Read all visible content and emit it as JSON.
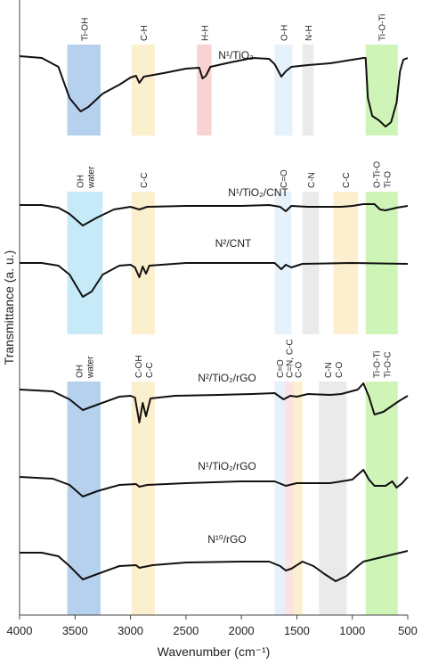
{
  "chart_data": {
    "type": "line",
    "xlabel": "Wavenumber (cm⁻¹)",
    "ylabel": "Transmittance (a. u.)",
    "xlim": [
      4000,
      500
    ],
    "xticks": [
      4000,
      3500,
      3000,
      2500,
      2000,
      1500,
      1000,
      500
    ],
    "ylim": [
      0,
      69
    ],
    "series": [
      {
        "name": "N¹/TiO₂",
        "color": "#111111",
        "x": [
          4000,
          3800,
          3650,
          3550,
          3450,
          3380,
          3250,
          3100,
          3000,
          2950,
          2920,
          2880,
          2700,
          2500,
          2380,
          2350,
          2320,
          2280,
          2100,
          1900,
          1750,
          1700,
          1640,
          1600,
          1550,
          1400,
          1200,
          1000,
          900,
          880,
          860,
          820,
          760,
          700,
          650,
          600,
          570,
          540,
          500
        ],
        "values": [
          62.7,
          62.5,
          61.5,
          58,
          56.5,
          57,
          58.5,
          59.5,
          60.3,
          60.5,
          59.7,
          60.4,
          60.8,
          61.3,
          61.4,
          60.2,
          60.5,
          61.5,
          62,
          62.5,
          62.4,
          61.8,
          60.4,
          61,
          61.5,
          61.7,
          61.9,
          62.3,
          62.5,
          62.5,
          58,
          56,
          55.5,
          54.8,
          55.3,
          57.5,
          61,
          62.3,
          62.5
        ]
      },
      {
        "name": "N¹/TiO₂/CNT",
        "color": "#111111",
        "x": [
          4000,
          3800,
          3650,
          3550,
          3430,
          3300,
          3150,
          3000,
          2920,
          2850,
          2500,
          2000,
          1750,
          1650,
          1600,
          1550,
          1400,
          1200,
          1100,
          1000,
          900,
          800,
          750,
          700,
          600,
          500
        ],
        "values": [
          46,
          46,
          45.7,
          45,
          43.7,
          44.6,
          45.5,
          45.8,
          45.5,
          45.8,
          45.9,
          45.9,
          46,
          45.8,
          45.3,
          45.9,
          45.8,
          45.8,
          45.8,
          45.9,
          46.1,
          46.1,
          45.5,
          45.4,
          45.7,
          45.9
        ]
      },
      {
        "name": "N²/CNT",
        "color": "#111111",
        "x": [
          4000,
          3800,
          3650,
          3550,
          3430,
          3350,
          3250,
          3100,
          3000,
          2960,
          2920,
          2890,
          2860,
          2830,
          2500,
          2000,
          1700,
          1640,
          1600,
          1550,
          1450,
          1000,
          500
        ],
        "values": [
          39.5,
          39.5,
          39.2,
          38.2,
          35.7,
          36.3,
          38.2,
          39.2,
          39.3,
          39,
          37.9,
          39.1,
          38.3,
          39.2,
          39.5,
          39.5,
          39.5,
          38.8,
          39.3,
          39,
          39.4,
          39.5,
          39.4
        ]
      },
      {
        "name": "N²/TiO₂/rGO",
        "color": "#111111",
        "x": [
          4000,
          3700,
          3550,
          3430,
          3300,
          3100,
          3000,
          2960,
          2920,
          2890,
          2860,
          2820,
          2600,
          2200,
          1900,
          1700,
          1620,
          1560,
          1500,
          1400,
          1200,
          1100,
          950,
          900,
          850,
          800,
          720,
          650,
          580,
          500
        ],
        "values": [
          25.3,
          25.1,
          24.2,
          23,
          23.6,
          24.5,
          24.6,
          24.4,
          21.6,
          23.8,
          22.3,
          24.3,
          24.6,
          24.7,
          24.8,
          24.9,
          24.2,
          24.6,
          24.5,
          24.8,
          24.7,
          24.8,
          25.3,
          26,
          24.5,
          22.5,
          22.8,
          23.4,
          24,
          24.6
        ]
      },
      {
        "name": "N¹/TiO₂/rGO",
        "color": "#111111",
        "x": [
          4000,
          3700,
          3550,
          3430,
          3300,
          3100,
          2950,
          2920,
          2850,
          2500,
          2000,
          1700,
          1600,
          1500,
          1200,
          1000,
          900,
          850,
          800,
          700,
          640,
          600,
          550,
          500
        ],
        "values": [
          15.5,
          15.3,
          14.6,
          13.3,
          13.9,
          14.6,
          14.7,
          14.4,
          14.6,
          14.8,
          15,
          15,
          14.5,
          14.8,
          14.8,
          15.2,
          16.3,
          15.2,
          14.5,
          14.5,
          15,
          14.3,
          14.8,
          15.5
        ]
      },
      {
        "name": "N¹⁰/rGO",
        "color": "#111111",
        "x": [
          4000,
          3800,
          3650,
          3550,
          3430,
          3300,
          3100,
          2950,
          2920,
          2800,
          2500,
          2000,
          1750,
          1650,
          1600,
          1550,
          1450,
          1350,
          1250,
          1150,
          1050,
          950,
          900,
          800,
          700,
          600,
          500
        ],
        "values": [
          7,
          7,
          6.6,
          5.5,
          4,
          4.6,
          5.5,
          5.6,
          5.3,
          5.6,
          5.9,
          6,
          6,
          5.5,
          5,
          5.2,
          6,
          5.5,
          4.6,
          3.8,
          4.4,
          5.5,
          6,
          6.3,
          6.6,
          6.9,
          7.2
        ]
      }
    ],
    "bands": [
      {
        "x": [
          3570,
          3270
        ],
        "y": [
          53.8,
          64
        ],
        "color": "#a9c9ea",
        "labels": [
          "Ti-OH"
        ]
      },
      {
        "x": [
          2990,
          2780
        ],
        "y": [
          53.8,
          64
        ],
        "color": "#fcecc4",
        "labels": [
          "C-H"
        ]
      },
      {
        "x": [
          2400,
          2270
        ],
        "y": [
          53.8,
          64
        ],
        "color": "#f8caca",
        "labels": [
          "H-H"
        ]
      },
      {
        "x": [
          1700,
          1540
        ],
        "y": [
          53.8,
          64
        ],
        "color": "#e0effa",
        "labels": [
          "O-H"
        ]
      },
      {
        "x": [
          1450,
          1350
        ],
        "y": [
          53.8,
          64
        ],
        "color": "#e6e6e6",
        "labels": [
          "N-H"
        ]
      },
      {
        "x": [
          880,
          590
        ],
        "y": [
          53.8,
          64
        ],
        "color": "#c6f2aa",
        "labels": [
          "Ti-O-Ti"
        ]
      },
      {
        "x": [
          3570,
          3250
        ],
        "y": [
          31.5,
          47.5
        ],
        "color": "#bce6f6",
        "labels": [
          "OH",
          "water"
        ]
      },
      {
        "x": [
          2990,
          2780
        ],
        "y": [
          31.5,
          47.5
        ],
        "color": "#fcecc4",
        "labels": [
          "C-C"
        ]
      },
      {
        "x": [
          1700,
          1550
        ],
        "y": [
          31.5,
          47.5
        ],
        "color": "#e0effa",
        "labels": [
          "C=O"
        ]
      },
      {
        "x": [
          1450,
          1300
        ],
        "y": [
          31.5,
          47.5
        ],
        "color": "#e6e6e6",
        "labels": [
          "C-N"
        ]
      },
      {
        "x": [
          1170,
          950
        ],
        "y": [
          31.5,
          47.5
        ],
        "color": "#fcecc4",
        "labels": [
          "C-C"
        ]
      },
      {
        "x": [
          880,
          590
        ],
        "y": [
          31.5,
          47.5
        ],
        "color": "#c6f2aa",
        "labels": [
          "O-Ti-O",
          "Ti-O"
        ]
      },
      {
        "x": [
          3570,
          3270
        ],
        "y": [
          0,
          26.2
        ],
        "color": "#a9c9ea",
        "labels": [
          "OH",
          "water"
        ]
      },
      {
        "x": [
          2990,
          2780
        ],
        "y": [
          0,
          26.2
        ],
        "color": "#fcecc4",
        "labels": [
          "C-OH",
          "C-C"
        ]
      },
      {
        "x": [
          1700,
          1610
        ],
        "y": [
          0,
          26.2
        ],
        "color": "#e0effa",
        "labels": [
          "C=O"
        ]
      },
      {
        "x": [
          1610,
          1530
        ],
        "y": [
          0,
          26.2
        ],
        "color": "#f8dede",
        "labels": [
          "C=N, C-C"
        ]
      },
      {
        "x": [
          1530,
          1450
        ],
        "y": [
          0,
          26.2
        ],
        "color": "#fcecc4",
        "labels": [
          "C-O"
        ]
      },
      {
        "x": [
          1300,
          1050
        ],
        "y": [
          0,
          26.2
        ],
        "color": "#e6e6e6",
        "labels": [
          "C-N",
          "C-O"
        ]
      },
      {
        "x": [
          880,
          590
        ],
        "y": [
          0,
          26.2
        ],
        "color": "#c6f2aa",
        "labels": [
          "Ti-O-Ti",
          "Ti-O-C"
        ]
      }
    ]
  }
}
